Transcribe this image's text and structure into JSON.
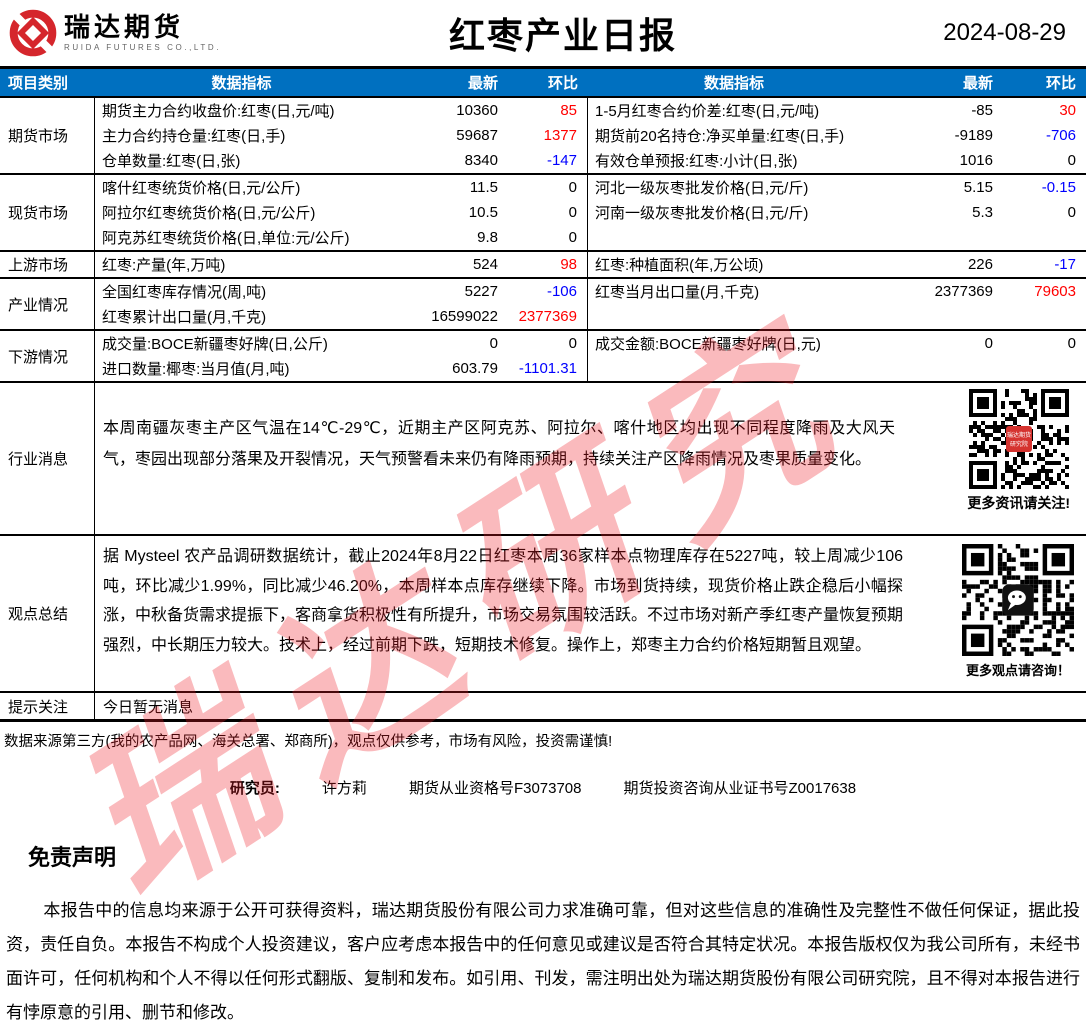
{
  "brand": {
    "name": "瑞达期货",
    "subtitle": "RUIDA FUTURES CO.,LTD."
  },
  "report": {
    "title": "红枣产业日报",
    "date": "2024-08-29"
  },
  "colors": {
    "header_bg": "#0070C0",
    "up": "#FF0000",
    "down": "#0000FF",
    "flat": "#000000",
    "brand_red": "#D5262C"
  },
  "table": {
    "headers": [
      "项目类别",
      "数据指标",
      "最新",
      "环比",
      "数据指标",
      "最新",
      "环比"
    ],
    "sections": [
      {
        "category": "期货市场",
        "rows": [
          {
            "l": [
              "期货主力合约收盘价:红枣(日,元/吨)",
              "10360",
              "85",
              "up"
            ],
            "r": [
              "1-5月红枣合约价差:红枣(日,元/吨)",
              "-85",
              "30",
              "up"
            ]
          },
          {
            "l": [
              "主力合约持仓量:红枣(日,手)",
              "59687",
              "1377",
              "up"
            ],
            "r": [
              "期货前20名持仓:净买单量:红枣(日,手)",
              "-9189",
              "-706",
              "down"
            ]
          },
          {
            "l": [
              "仓单数量:红枣(日,张)",
              "8340",
              "-147",
              "down"
            ],
            "r": [
              "有效仓单预报:红枣:小计(日,张)",
              "1016",
              "0",
              "flat"
            ]
          }
        ]
      },
      {
        "category": "现货市场",
        "rows": [
          {
            "l": [
              "喀什红枣统货价格(日,元/公斤)",
              "11.5",
              "0",
              "flat"
            ],
            "r": [
              "河北一级灰枣批发价格(日,元/斤)",
              "5.15",
              "-0.15",
              "down"
            ]
          },
          {
            "l": [
              "阿拉尔红枣统货价格(日,元/公斤)",
              "10.5",
              "0",
              "flat"
            ],
            "r": [
              "河南一级灰枣批发价格(日,元/斤)",
              "5.3",
              "0",
              "flat"
            ]
          },
          {
            "l": [
              "阿克苏红枣统货价格(日,单位:元/公斤)",
              "9.8",
              "0",
              "flat"
            ],
            "r": null
          }
        ]
      },
      {
        "category": "上游市场",
        "rows": [
          {
            "l": [
              "红枣:产量(年,万吨)",
              "524",
              "98",
              "up"
            ],
            "r": [
              "红枣:种植面积(年,万公顷)",
              "226",
              "-17",
              "down"
            ]
          }
        ]
      },
      {
        "category": "产业情况",
        "rows": [
          {
            "l": [
              "全国红枣库存情况(周,吨)",
              "5227",
              "-106",
              "down"
            ],
            "r": [
              "红枣当月出口量(月,千克)",
              "2377369",
              "79603",
              "up"
            ]
          },
          {
            "l": [
              "红枣累计出口量(月,千克)",
              "16599022",
              "2377369",
              "up"
            ],
            "r": null
          }
        ]
      },
      {
        "category": "下游情况",
        "rows": [
          {
            "l": [
              "成交量:BOCE新疆枣好牌(日,公斤)",
              "0",
              "0",
              "flat"
            ],
            "r": [
              "成交金额:BOCE新疆枣好牌(日,元)",
              "0",
              "0",
              "flat"
            ]
          },
          {
            "l": [
              "进口数量:椰枣:当月值(月,吨)",
              "603.79",
              "-1101.31",
              "down"
            ],
            "r": null
          }
        ]
      }
    ]
  },
  "industry_news": {
    "category": "行业消息",
    "text": "本周南疆灰枣主产区气温在14℃-29℃，近期主产区阿克苏、阿拉尔、喀什地区均出现不同程度降雨及大风天气，枣园出现部分落果及开裂情况，天气预警看未来仍有降雨预期，持续关注产区降雨情况及枣果质量变化。",
    "qr_caption": "更多资讯请关注!",
    "qr_badge_line1": "瑞达期货",
    "qr_badge_line2": "研究院"
  },
  "summary": {
    "category": "观点总结",
    "text": "据 Mysteel 农产品调研数据统计，截止2024年8月22日红枣本周36家样本点物理库存在5227吨，较上周减少106吨，环比减少1.99%，同比减少46.20%，本周样本点库存继续下降。市场到货持续，现货价格止跌企稳后小幅探涨，中秋备货需求提振下，客商拿货积极性有所提升，市场交易氛围较活跃。不过市场对新产季红枣产量恢复预期强烈，中长期压力较大。技术上，经过前期下跌，短期技术修复。操作上，郑枣主力合约价格短期暂且观望。",
    "qr_caption": "更多观点请咨询！"
  },
  "notice": {
    "category": "提示关注",
    "text": "今日暂无消息"
  },
  "footer": {
    "source": "数据来源第三方(我的农产品网、海关总署、郑商所)，观点仅供参考，市场有风险，投资需谨慎!",
    "researcher_label": "研究员:",
    "researcher_name": "许方莉",
    "qualification": "期货从业资格号F3073708",
    "advisory": "期货投资咨询从业证书号Z0017638"
  },
  "disclaimer": {
    "title": "免责声明",
    "text": "本报告中的信息均来源于公开可获得资料，瑞达期货股份有限公司力求准确可靠，但对这些信息的准确性及完整性不做任何保证，据此投资，责任自负。本报告不构成个人投资建议，客户应考虑本报告中的任何意见或建议是否符合其特定状况。本报告版权仅为我公司所有，未经书面许可，任何机构和个人不得以任何形式翻版、复制和发布。如引用、刊发，需注明出处为瑞达期货股份有限公司研究院，且不得对本报告进行有悖原意的引用、删节和修改。"
  },
  "watermark": "瑞达研究"
}
